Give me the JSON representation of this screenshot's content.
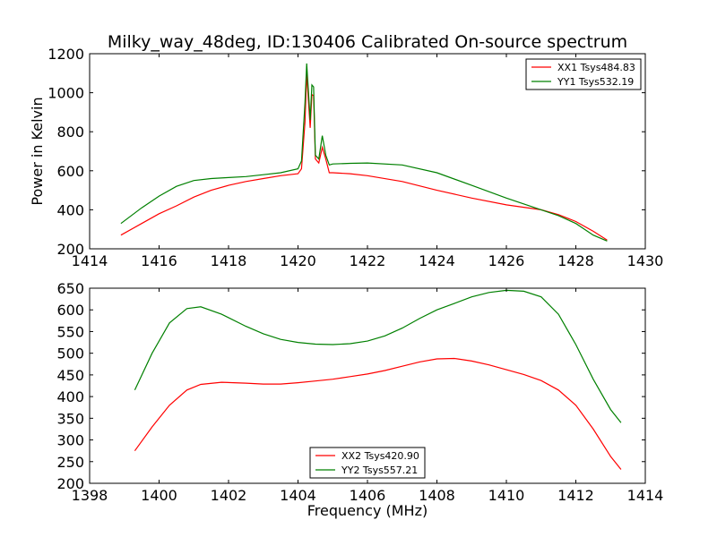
{
  "chart_data": [
    {
      "type": "line",
      "title": "Milky_way_48deg, ID:130406 Calibrated On-source spectrum",
      "xlabel": "",
      "ylabel": "Power in Kelvin",
      "xlim": [
        1414,
        1430
      ],
      "ylim": [
        200,
        1200
      ],
      "xticks": [
        "1414",
        "1416",
        "1418",
        "1420",
        "1422",
        "1424",
        "1426",
        "1428",
        "1430"
      ],
      "yticks": [
        "200",
        "400",
        "600",
        "800",
        "1000",
        "1200"
      ],
      "legend_position": "top-right",
      "series": [
        {
          "name": "XX1 Tsys484.83",
          "color": "#ff0000",
          "x": [
            1414.9,
            1415.5,
            1416.0,
            1416.5,
            1417.0,
            1417.5,
            1418.0,
            1418.5,
            1419.0,
            1419.5,
            1420.0,
            1420.1,
            1420.2,
            1420.25,
            1420.35,
            1420.4,
            1420.45,
            1420.5,
            1420.6,
            1420.7,
            1420.8,
            1420.9,
            1421.0,
            1421.5,
            1422.0,
            1423.0,
            1424.0,
            1425.0,
            1426.0,
            1427.0,
            1427.5,
            1428.0,
            1428.5,
            1428.9
          ],
          "y": [
            270,
            330,
            380,
            420,
            465,
            500,
            525,
            545,
            560,
            575,
            585,
            610,
            850,
            1100,
            820,
            990,
            985,
            660,
            640,
            720,
            660,
            590,
            590,
            585,
            575,
            545,
            500,
            460,
            425,
            400,
            375,
            340,
            290,
            245
          ]
        },
        {
          "name": "YY1 Tsys532.19",
          "color": "#008000",
          "x": [
            1414.9,
            1415.5,
            1416.0,
            1416.5,
            1417.0,
            1417.5,
            1418.0,
            1418.5,
            1419.0,
            1419.5,
            1420.0,
            1420.1,
            1420.2,
            1420.25,
            1420.35,
            1420.4,
            1420.45,
            1420.5,
            1420.6,
            1420.7,
            1420.8,
            1420.9,
            1421.0,
            1421.5,
            1422.0,
            1423.0,
            1424.0,
            1425.0,
            1426.0,
            1427.0,
            1427.5,
            1428.0,
            1428.5,
            1428.9
          ],
          "y": [
            330,
            410,
            470,
            520,
            550,
            560,
            565,
            570,
            580,
            590,
            610,
            650,
            950,
            1150,
            860,
            1040,
            1030,
            680,
            660,
            780,
            680,
            630,
            635,
            638,
            640,
            630,
            590,
            525,
            460,
            400,
            370,
            330,
            270,
            240
          ]
        }
      ]
    },
    {
      "type": "line",
      "title": "",
      "xlabel": "Frequency (MHz)",
      "ylabel": "",
      "xlim": [
        1398,
        1414
      ],
      "ylim": [
        200,
        650
      ],
      "xticks": [
        "1398",
        "1400",
        "1402",
        "1404",
        "1406",
        "1408",
        "1410",
        "1412",
        "1414"
      ],
      "yticks": [
        "200",
        "250",
        "300",
        "350",
        "400",
        "450",
        "500",
        "550",
        "600",
        "650"
      ],
      "legend_position": "bottom-center",
      "series": [
        {
          "name": "XX2 Tsys420.90",
          "color": "#ff0000",
          "x": [
            1399.3,
            1399.8,
            1400.3,
            1400.8,
            1401.2,
            1401.8,
            1402.5,
            1403.0,
            1403.5,
            1404.0,
            1404.5,
            1405.0,
            1405.5,
            1406.0,
            1406.5,
            1407.0,
            1407.5,
            1408.0,
            1408.5,
            1409.0,
            1409.5,
            1410.0,
            1410.5,
            1411.0,
            1411.5,
            1412.0,
            1412.5,
            1413.0,
            1413.3
          ],
          "y": [
            275,
            330,
            380,
            415,
            428,
            433,
            431,
            429,
            429,
            432,
            436,
            440,
            446,
            452,
            460,
            470,
            480,
            487,
            488,
            482,
            473,
            462,
            451,
            437,
            415,
            380,
            325,
            262,
            232
          ]
        },
        {
          "name": "YY2 Tsys557.21",
          "color": "#008000",
          "x": [
            1399.3,
            1399.8,
            1400.3,
            1400.8,
            1401.2,
            1401.8,
            1402.5,
            1403.0,
            1403.5,
            1404.0,
            1404.5,
            1405.0,
            1405.5,
            1406.0,
            1406.5,
            1407.0,
            1407.5,
            1408.0,
            1408.5,
            1409.0,
            1409.5,
            1410.0,
            1410.5,
            1411.0,
            1411.5,
            1412.0,
            1412.5,
            1413.0,
            1413.3
          ],
          "y": [
            415,
            500,
            570,
            603,
            607,
            590,
            562,
            545,
            532,
            525,
            521,
            520,
            522,
            528,
            540,
            558,
            580,
            600,
            615,
            630,
            640,
            645,
            643,
            630,
            590,
            520,
            440,
            370,
            340
          ]
        }
      ]
    }
  ]
}
